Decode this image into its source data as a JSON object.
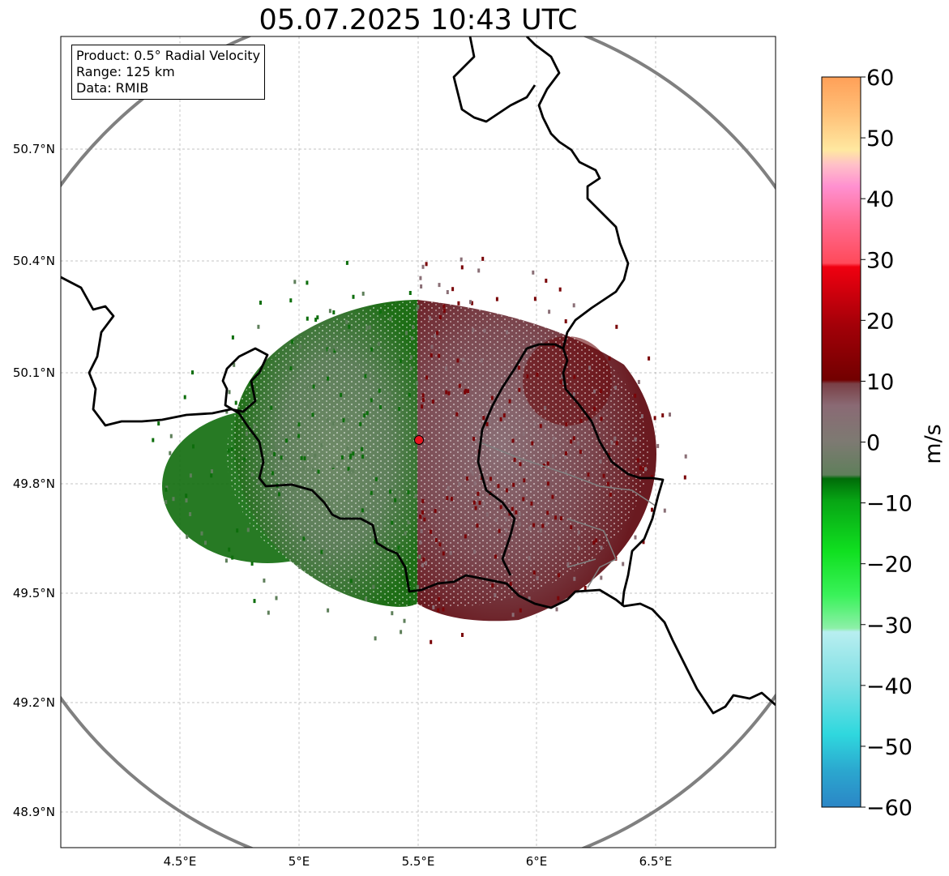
{
  "title": "05.07.2025 10:43 UTC",
  "info_box": {
    "product": "Product: 0.5° Radial Velocity",
    "range": "Range: 125 km",
    "source": "Data: RMIB"
  },
  "map": {
    "lon_ticks": [
      "4.5°E",
      "5°E",
      "5.5°E",
      "6°E",
      "6.5°E"
    ],
    "lat_ticks": [
      "50.7°N",
      "50.4°N",
      "50.1°N",
      "49.8°N",
      "49.5°N",
      "49.2°N",
      "48.9°N"
    ],
    "radar_site": {
      "lon": 5.505,
      "lat": 49.914
    },
    "range_ring_color": "#808080",
    "border_color": "#000000",
    "grid": true
  },
  "colorbar": {
    "label": "m/s",
    "ticks": [
      "60",
      "50",
      "40",
      "30",
      "20",
      "10",
      "0",
      "−10",
      "−20",
      "−30",
      "−40",
      "−50",
      "−60"
    ],
    "range": [
      -60,
      60
    ],
    "colors": [
      {
        "from": -60,
        "to": -55,
        "color": "#2b86c6"
      },
      {
        "from": -55,
        "to": -45,
        "color": "#2fd8de"
      },
      {
        "from": -45,
        "to": -35,
        "color": "#99e4ea"
      },
      {
        "from": -35,
        "to": -30,
        "color": "#8df0a8"
      },
      {
        "from": -30,
        "to": -25,
        "color": "#3af25a"
      },
      {
        "from": -25,
        "to": -15,
        "color": "#0ac81a"
      },
      {
        "from": -15,
        "to": -5,
        "color": "#007a0a"
      },
      {
        "from": -5,
        "to": 0,
        "color": "#5e7f5a"
      },
      {
        "from": 0,
        "to": 5,
        "color": "#8a7278"
      },
      {
        "from": 5,
        "to": 15,
        "color": "#7a0508"
      },
      {
        "from": 15,
        "to": 25,
        "color": "#c40008"
      },
      {
        "from": 25,
        "to": 30,
        "color": "#f00010"
      },
      {
        "from": 30,
        "to": 35,
        "color": "#ff5a70"
      },
      {
        "from": 35,
        "to": 45,
        "color": "#ff8ccc"
      },
      {
        "from": 45,
        "to": 50,
        "color": "#ffe0a0"
      },
      {
        "from": 50,
        "to": 60,
        "color": "#ffa868"
      }
    ]
  }
}
